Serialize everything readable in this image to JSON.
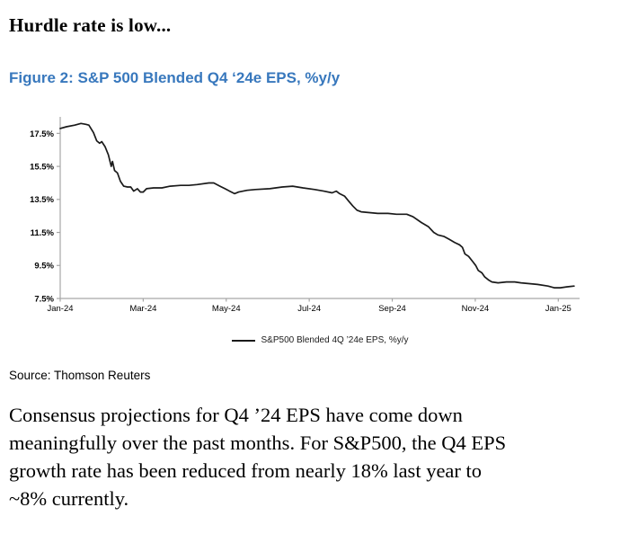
{
  "header": {
    "title": "Hurdle rate is low..."
  },
  "source_line": "Source: Thomson Reuters",
  "body_paragraph": "Consensus projections for Q4 ’24 EPS have come down\nmeaningfully over the past months. For S&P500, the Q4 EPS\ngrowth rate has been reduced from nearly 18% last year to\n~8% currently.",
  "colors": {
    "caption_blue": "#3878BD",
    "axis_gray": "#A6A6A6",
    "series_black": "#1A1A1A"
  },
  "chart_data": {
    "type": "line",
    "title": "Figure 2: S&P 500 Blended Q4 ‘24e EPS, %y/y",
    "xlabel": "",
    "ylabel": "",
    "ylim": [
      7.5,
      18.5
    ],
    "x_unit": "months since Jan-2024",
    "xlim": [
      0,
      12.5
    ],
    "grid": false,
    "legend_position": "bottom-center",
    "y_ticks": [
      {
        "label": "17.5%",
        "value": 17.5
      },
      {
        "label": "15.5%",
        "value": 15.5
      },
      {
        "label": "13.5%",
        "value": 13.5
      },
      {
        "label": "11.5%",
        "value": 11.5
      },
      {
        "label": "9.5%",
        "value": 9.5
      },
      {
        "label": "7.5%",
        "value": 7.5
      }
    ],
    "x_ticks": [
      {
        "label": "Jan-24",
        "month": 0
      },
      {
        "label": "Mar-24",
        "month": 2
      },
      {
        "label": "May-24",
        "month": 4
      },
      {
        "label": "Jul-24",
        "month": 6
      },
      {
        "label": "Sep-24",
        "month": 8
      },
      {
        "label": "Nov-24",
        "month": 10
      },
      {
        "label": "Jan-25",
        "month": 12
      }
    ],
    "series": [
      {
        "name": "S&P500 Blended 4Q ’24e EPS, %y/y",
        "color": "#1A1A1A",
        "points_month_pct": [
          [
            0.0,
            17.8
          ],
          [
            0.15,
            17.9
          ],
          [
            0.35,
            18.0
          ],
          [
            0.5,
            18.1
          ],
          [
            0.62,
            18.05
          ],
          [
            0.69,
            18.0
          ],
          [
            0.8,
            17.55
          ],
          [
            0.88,
            17.05
          ],
          [
            0.95,
            16.9
          ],
          [
            1.0,
            17.0
          ],
          [
            1.08,
            16.7
          ],
          [
            1.16,
            16.2
          ],
          [
            1.23,
            15.5
          ],
          [
            1.26,
            15.8
          ],
          [
            1.31,
            15.25
          ],
          [
            1.38,
            15.1
          ],
          [
            1.45,
            14.6
          ],
          [
            1.53,
            14.3
          ],
          [
            1.62,
            14.25
          ],
          [
            1.7,
            14.25
          ],
          [
            1.77,
            14.0
          ],
          [
            1.86,
            14.15
          ],
          [
            1.93,
            13.95
          ],
          [
            2.0,
            13.95
          ],
          [
            2.08,
            14.15
          ],
          [
            2.25,
            14.2
          ],
          [
            2.45,
            14.2
          ],
          [
            2.65,
            14.3
          ],
          [
            2.9,
            14.35
          ],
          [
            3.1,
            14.35
          ],
          [
            3.3,
            14.4
          ],
          [
            3.58,
            14.5
          ],
          [
            3.7,
            14.5
          ],
          [
            3.85,
            14.3
          ],
          [
            3.97,
            14.15
          ],
          [
            4.08,
            14.0
          ],
          [
            4.2,
            13.85
          ],
          [
            4.3,
            13.95
          ],
          [
            4.5,
            14.05
          ],
          [
            4.7,
            14.1
          ],
          [
            5.05,
            14.15
          ],
          [
            5.35,
            14.25
          ],
          [
            5.6,
            14.3
          ],
          [
            5.85,
            14.2
          ],
          [
            6.13,
            14.1
          ],
          [
            6.35,
            14.0
          ],
          [
            6.55,
            13.9
          ],
          [
            6.65,
            14.0
          ],
          [
            6.73,
            13.85
          ],
          [
            6.85,
            13.7
          ],
          [
            6.95,
            13.4
          ],
          [
            7.05,
            13.1
          ],
          [
            7.15,
            12.85
          ],
          [
            7.25,
            12.75
          ],
          [
            7.45,
            12.7
          ],
          [
            7.65,
            12.65
          ],
          [
            7.9,
            12.65
          ],
          [
            8.1,
            12.6
          ],
          [
            8.35,
            12.6
          ],
          [
            8.5,
            12.45
          ],
          [
            8.7,
            12.1
          ],
          [
            8.87,
            11.85
          ],
          [
            9.0,
            11.5
          ],
          [
            9.1,
            11.35
          ],
          [
            9.25,
            11.25
          ],
          [
            9.36,
            11.1
          ],
          [
            9.5,
            10.9
          ],
          [
            9.62,
            10.75
          ],
          [
            9.69,
            10.6
          ],
          [
            9.75,
            10.2
          ],
          [
            9.84,
            10.05
          ],
          [
            9.95,
            9.7
          ],
          [
            10.01,
            9.5
          ],
          [
            10.07,
            9.2
          ],
          [
            10.16,
            9.05
          ],
          [
            10.23,
            8.8
          ],
          [
            10.33,
            8.6
          ],
          [
            10.4,
            8.5
          ],
          [
            10.55,
            8.45
          ],
          [
            10.75,
            8.5
          ],
          [
            10.95,
            8.5
          ],
          [
            11.1,
            8.45
          ],
          [
            11.3,
            8.4
          ],
          [
            11.5,
            8.35
          ],
          [
            11.75,
            8.25
          ],
          [
            11.9,
            8.15
          ],
          [
            12.05,
            8.15
          ],
          [
            12.2,
            8.2
          ],
          [
            12.38,
            8.25
          ]
        ]
      }
    ]
  }
}
